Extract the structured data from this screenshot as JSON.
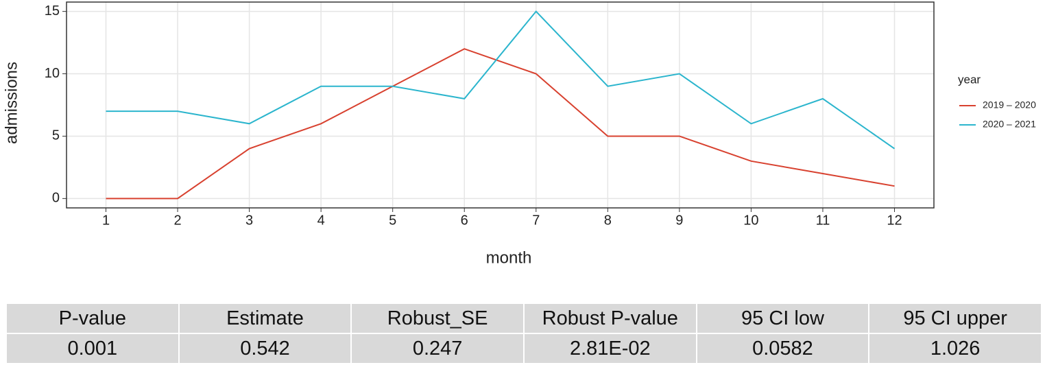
{
  "chart_data": {
    "type": "line",
    "x_label": "month",
    "y_label": "admissions",
    "x": [
      1,
      2,
      3,
      4,
      5,
      6,
      7,
      8,
      9,
      10,
      11,
      12
    ],
    "series": [
      {
        "name": "2019 – 2020",
        "color": "#d8412f",
        "values": [
          0,
          0,
          4,
          6,
          9,
          12,
          10,
          5,
          5,
          3,
          2,
          1
        ]
      },
      {
        "name": "2020 – 2021",
        "color": "#2bb5cd",
        "values": [
          7,
          7,
          6,
          9,
          9,
          8,
          15,
          9,
          10,
          6,
          8,
          4
        ]
      }
    ],
    "legend_title": "year",
    "legend": "right",
    "xlim": [
      0.45,
      12.55
    ],
    "xticks": [
      1,
      2,
      3,
      4,
      5,
      6,
      7,
      8,
      9,
      10,
      11,
      12
    ],
    "ylim": [
      -0.75,
      15.75
    ],
    "yticks": [
      0,
      5,
      10,
      15
    ],
    "grid": true
  },
  "table": {
    "columns": [
      "P-value",
      "Estimate",
      "Robust_SE",
      "Robust P-value",
      "95 CI low",
      "95 CI upper"
    ],
    "rows": [
      [
        "0.001",
        "0.542",
        "0.247",
        "2.81E-02",
        "0.0582",
        "1.026"
      ]
    ]
  }
}
